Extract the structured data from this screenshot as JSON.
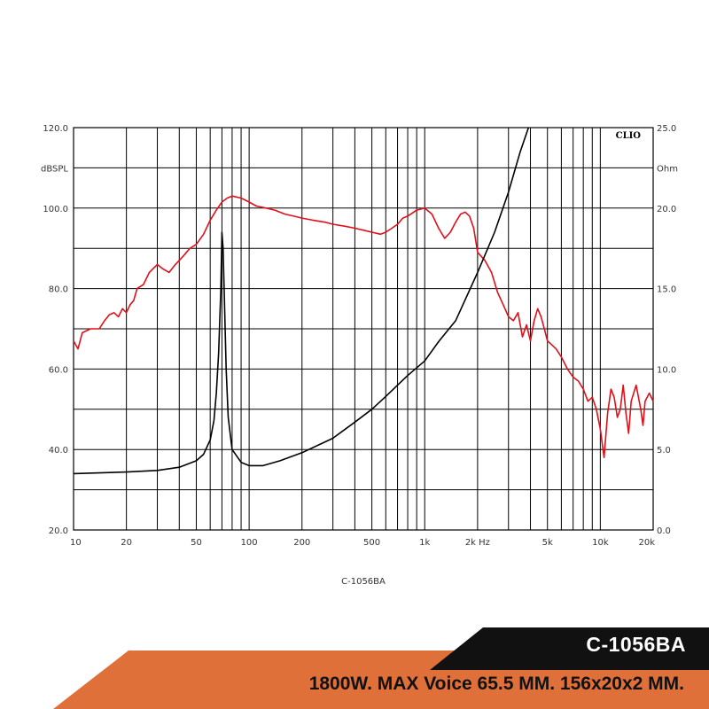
{
  "chart_data": {
    "type": "line",
    "caption": "C-1056BA",
    "brand": "CLIO",
    "x_axis": {
      "scale": "log",
      "range": [
        10,
        20000
      ],
      "tick_labels": [
        {
          "value": 10,
          "label": "10"
        },
        {
          "value": 20,
          "label": "20"
        },
        {
          "value": 50,
          "label": "50"
        },
        {
          "value": 100,
          "label": "100"
        },
        {
          "value": 200,
          "label": "200"
        },
        {
          "value": 500,
          "label": "500"
        },
        {
          "value": 1000,
          "label": "1k"
        },
        {
          "value": 2000,
          "label": "2k Hz"
        },
        {
          "value": 5000,
          "label": "5k"
        },
        {
          "value": 10000,
          "label": "10k"
        },
        {
          "value": 20000,
          "label": "20k"
        }
      ]
    },
    "y_left": {
      "label": "dBSPL",
      "range": [
        20,
        120
      ],
      "ticks": [
        {
          "value": 120,
          "label": "120.0"
        },
        {
          "value": 100,
          "label": "100.0"
        },
        {
          "value": 80,
          "label": "80.0"
        },
        {
          "value": 60,
          "label": "60.0"
        },
        {
          "value": 40,
          "label": "40.0"
        },
        {
          "value": 20,
          "label": "20.0"
        }
      ]
    },
    "y_right": {
      "label": "Ohm",
      "range": [
        0,
        25
      ],
      "ticks": [
        {
          "value": 25,
          "label": "25.0"
        },
        {
          "value": 20,
          "label": "20.0"
        },
        {
          "value": 15,
          "label": "15.0"
        },
        {
          "value": 10,
          "label": "10.0"
        },
        {
          "value": 5,
          "label": "5.0"
        },
        {
          "value": 0,
          "label": "0.0"
        }
      ]
    },
    "grid": true,
    "series": [
      {
        "color": "#e0101a",
        "axis": "left",
        "points": [
          [
            10,
            67
          ],
          [
            10.6,
            65
          ],
          [
            11.2,
            69
          ],
          [
            12.5,
            70
          ],
          [
            14,
            70
          ],
          [
            15,
            72
          ],
          [
            16,
            73.5
          ],
          [
            17,
            74
          ],
          [
            18,
            73
          ],
          [
            19,
            75
          ],
          [
            20,
            74
          ],
          [
            21,
            76
          ],
          [
            22,
            77
          ],
          [
            23,
            80
          ],
          [
            25,
            81
          ],
          [
            27,
            84
          ],
          [
            30,
            86
          ],
          [
            32,
            85
          ],
          [
            35,
            84
          ],
          [
            38,
            86
          ],
          [
            42,
            88
          ],
          [
            46,
            90
          ],
          [
            50,
            91
          ],
          [
            55,
            93.5
          ],
          [
            60,
            97
          ],
          [
            65,
            99.5
          ],
          [
            70,
            101.5
          ],
          [
            75,
            102.5
          ],
          [
            80,
            103
          ],
          [
            90,
            102.5
          ],
          [
            100,
            101.5
          ],
          [
            110,
            100.5
          ],
          [
            125,
            100
          ],
          [
            140,
            99.5
          ],
          [
            160,
            98.5
          ],
          [
            180,
            98
          ],
          [
            200,
            97.5
          ],
          [
            230,
            97
          ],
          [
            270,
            96.5
          ],
          [
            300,
            96
          ],
          [
            350,
            95.5
          ],
          [
            400,
            95
          ],
          [
            450,
            94.5
          ],
          [
            500,
            94
          ],
          [
            560,
            93.5
          ],
          [
            600,
            94
          ],
          [
            650,
            95
          ],
          [
            700,
            96
          ],
          [
            750,
            97.5
          ],
          [
            800,
            98
          ],
          [
            900,
            99.5
          ],
          [
            1000,
            100
          ],
          [
            1100,
            98.5
          ],
          [
            1200,
            95
          ],
          [
            1300,
            92.5
          ],
          [
            1400,
            94
          ],
          [
            1500,
            96.5
          ],
          [
            1600,
            98.5
          ],
          [
            1700,
            99
          ],
          [
            1800,
            98
          ],
          [
            1900,
            95
          ],
          [
            2000,
            89
          ],
          [
            2200,
            87
          ],
          [
            2400,
            84
          ],
          [
            2600,
            79
          ],
          [
            2800,
            76
          ],
          [
            3000,
            73
          ],
          [
            3200,
            72
          ],
          [
            3400,
            74
          ],
          [
            3600,
            68
          ],
          [
            3800,
            71
          ],
          [
            4000,
            67
          ],
          [
            4200,
            72
          ],
          [
            4400,
            75
          ],
          [
            4600,
            73
          ],
          [
            4800,
            70
          ],
          [
            5000,
            67
          ],
          [
            5300,
            66
          ],
          [
            5600,
            65
          ],
          [
            6000,
            63
          ],
          [
            6500,
            60
          ],
          [
            7000,
            58
          ],
          [
            7500,
            57
          ],
          [
            8000,
            55
          ],
          [
            8500,
            52
          ],
          [
            9000,
            53
          ],
          [
            9500,
            50
          ],
          [
            10000,
            45
          ],
          [
            10500,
            38
          ],
          [
            11000,
            49
          ],
          [
            11500,
            55
          ],
          [
            12000,
            53
          ],
          [
            12500,
            48
          ],
          [
            13000,
            50
          ],
          [
            13500,
            56
          ],
          [
            14000,
            49
          ],
          [
            14500,
            44
          ],
          [
            15000,
            52
          ],
          [
            16000,
            56
          ],
          [
            17000,
            50
          ],
          [
            17500,
            46
          ],
          [
            18000,
            52
          ],
          [
            19000,
            54
          ],
          [
            20000,
            52
          ]
        ]
      },
      {
        "color": "#000000",
        "axis": "right",
        "points": [
          [
            10,
            3.5
          ],
          [
            20,
            3.6
          ],
          [
            30,
            3.7
          ],
          [
            40,
            3.9
          ],
          [
            50,
            4.3
          ],
          [
            55,
            4.7
          ],
          [
            60,
            5.6
          ],
          [
            63,
            6.8
          ],
          [
            65,
            8.5
          ],
          [
            67,
            11
          ],
          [
            69,
            15
          ],
          [
            70,
            18.5
          ],
          [
            71,
            17.5
          ],
          [
            72,
            15
          ],
          [
            74,
            10
          ],
          [
            76,
            7
          ],
          [
            80,
            5
          ],
          [
            90,
            4.2
          ],
          [
            100,
            4
          ],
          [
            120,
            4
          ],
          [
            150,
            4.3
          ],
          [
            200,
            4.8
          ],
          [
            300,
            5.7
          ],
          [
            400,
            6.7
          ],
          [
            500,
            7.5
          ],
          [
            600,
            8.3
          ],
          [
            700,
            9
          ],
          [
            800,
            9.6
          ],
          [
            1000,
            10.5
          ],
          [
            1200,
            11.7
          ],
          [
            1500,
            13
          ],
          [
            2000,
            16
          ],
          [
            2500,
            18.5
          ],
          [
            3000,
            21
          ],
          [
            3500,
            23.5
          ],
          [
            3900,
            25
          ]
        ]
      }
    ]
  },
  "banner": {
    "model": "C-1056BA",
    "spec": "1800W. MAX Voice 65.5 MM. 156x20x2 MM."
  },
  "colors": {
    "banner_orange": "#e0703a",
    "banner_black": "#111111",
    "frequency_response": "#e0101a",
    "impedance": "#000000"
  }
}
